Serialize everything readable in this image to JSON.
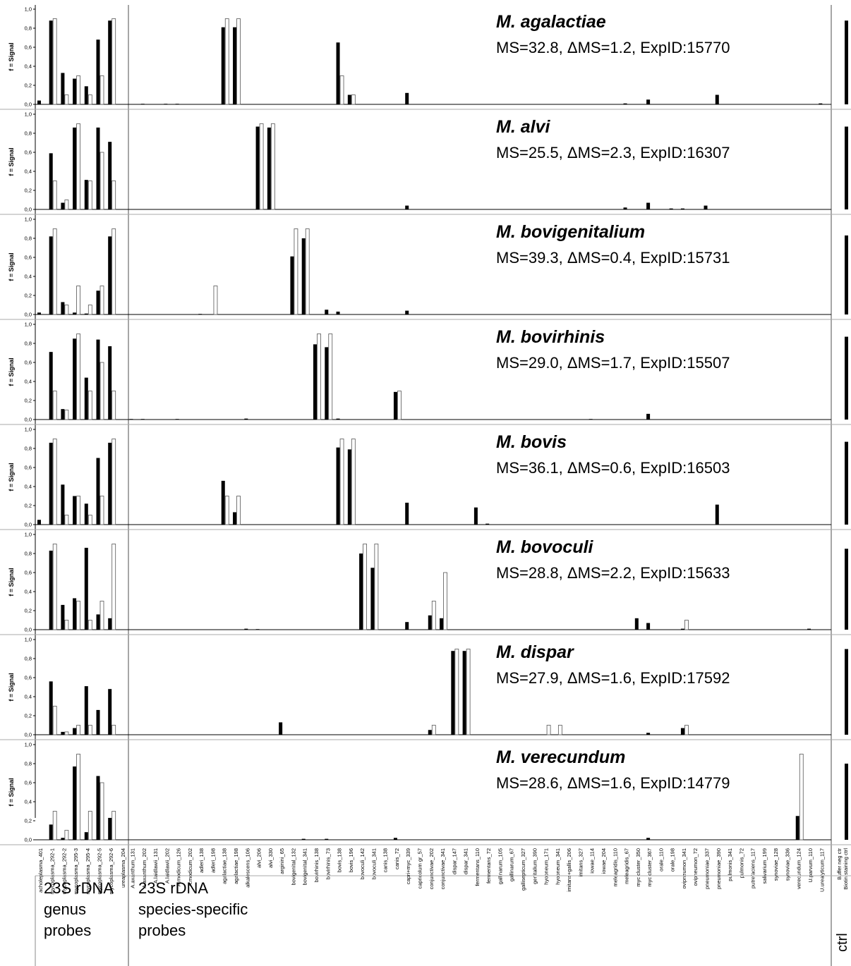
{
  "chart_data": {
    "type": "bar",
    "ylabel": "f = Signal",
    "ylim": [
      0,
      1.0
    ],
    "yticks": [
      "0,0",
      "0,2",
      "0,4",
      "0,6",
      "0,8",
      "1,0"
    ],
    "bar_colors": {
      "measured": "#000000",
      "expected": "#ffffff"
    },
    "groups": {
      "genus": [
        "23S rDNA",
        "genus",
        "probes"
      ],
      "species": [
        "23S rDNA",
        "species-specific",
        "probes"
      ],
      "ctrl": "ctrl"
    },
    "probes": [
      "acholeplasma_401",
      "mycoplasma_292-1",
      "mycoplasma_292-2",
      "mycoplasma_295-3",
      "mycoplasma_295-4",
      "mycoplasma_292-5",
      "mycoplasma_292-6",
      "ureaplasma_204",
      "A.axanthum_131",
      "A.axanthum_202",
      "A.laidlawii_131",
      "A.laidlawii_202",
      "A.modicum_126",
      "A.modicum_202",
      "adleri_138",
      "adleri_198",
      "agalactiae_138",
      "agalactiae_198",
      "alkalescens_106",
      "alvi_206",
      "alvi_330",
      "arginini_65",
      "bovigenital_132",
      "bovigenital_341",
      "bovirhinis_138",
      "bovirhinis_73",
      "bovis_138",
      "bovis_196",
      "bovoculi_142",
      "bovoculi_341",
      "canis_138",
      "canis_72",
      "capri+myc_339",
      "capricolum gr_57",
      "conjunctivae_202",
      "conjunctivae_341",
      "dispar_147",
      "dispar_341",
      "fermentans_110",
      "fermentans_72",
      "gallinarum_105",
      "gallinarum_67",
      "gallisepticum_327",
      "genitalium_390",
      "hyopneum_171",
      "hyopneum_341",
      "imitans+gallis_206",
      "imitans_327",
      "iowae_114",
      "iowae_204",
      "meleagridis_110",
      "meleagridis_67",
      "myc cluster_350",
      "myc cluster_367",
      "orale_110",
      "orale_198",
      "ovipneumon_341",
      "ovipneumon_72",
      "pneumoniae_337",
      "pneumoniae_390",
      "pulmonis_341",
      "pulmonis_72",
      "putrefaciens_117",
      "salivarium_199",
      "synoviae_128",
      "synoviae_336",
      "verecundum_124",
      "U.parvum_110",
      "U.urealyticum_117",
      "Buffer neg ctr",
      "Biotin staining ctrl"
    ],
    "panels": [
      {
        "species": "M. agalactiae",
        "info": "MS=32.8,   ΔMS=1.2, ExpID:15770",
        "measured": [
          0.04,
          0.88,
          0.33,
          0.27,
          0.19,
          0.68,
          0.88,
          0,
          0,
          0.003,
          0,
          0.003,
          0.003,
          0,
          0,
          0,
          0.81,
          0.81,
          0,
          0,
          0,
          0,
          0,
          0,
          0,
          0,
          0.65,
          0.1,
          0,
          0,
          0,
          0,
          0.12,
          0,
          0,
          0,
          0,
          0,
          0,
          0,
          0,
          0,
          0,
          0,
          0,
          0,
          0,
          0,
          0,
          0,
          0,
          0.01,
          0,
          0.05,
          0,
          0,
          0,
          0,
          0,
          0.1,
          0,
          0,
          0,
          0,
          0,
          0,
          0,
          0,
          0.01,
          0,
          0.88
        ],
        "expected": [
          0,
          0.9,
          0.1,
          0.3,
          0.1,
          0.3,
          0.9,
          0,
          0,
          0,
          0,
          0,
          0,
          0,
          0,
          0,
          0.9,
          0.9,
          0,
          0,
          0,
          0,
          0,
          0,
          0,
          0,
          0.3,
          0.1,
          0,
          0,
          0,
          0,
          0,
          0,
          0,
          0,
          0,
          0,
          0,
          0,
          0,
          0,
          0,
          0,
          0,
          0,
          0,
          0,
          0,
          0,
          0,
          0,
          0,
          0,
          0,
          0,
          0,
          0,
          0,
          0,
          0,
          0,
          0,
          0,
          0,
          0,
          0,
          0,
          0,
          0,
          0
        ]
      },
      {
        "species": "M. alvi",
        "info": "MS=25.5, ΔMS=2.3, ExpID:16307",
        "measured": [
          0,
          0.59,
          0.07,
          0.86,
          0.31,
          0.86,
          0.71,
          0,
          0,
          0,
          0,
          0,
          0,
          0,
          0,
          0,
          0,
          0,
          0,
          0.87,
          0.86,
          0,
          0,
          0,
          0,
          0,
          0,
          0,
          0,
          0,
          0,
          0,
          0.04,
          0,
          0,
          0,
          0,
          0,
          0,
          0,
          0,
          0,
          0,
          0,
          0,
          0,
          0,
          0,
          0,
          0,
          0,
          0.02,
          0,
          0.07,
          0,
          0.01,
          0.01,
          0,
          0.04,
          0,
          0,
          0,
          0,
          0,
          0,
          0,
          0,
          0,
          0,
          0,
          0.87
        ],
        "expected": [
          0,
          0.3,
          0.1,
          0.9,
          0.3,
          0.6,
          0.3,
          0,
          0,
          0,
          0,
          0,
          0,
          0,
          0,
          0,
          0,
          0,
          0,
          0.9,
          0.9,
          0,
          0,
          0,
          0,
          0,
          0,
          0,
          0,
          0,
          0,
          0,
          0,
          0,
          0,
          0,
          0,
          0,
          0,
          0,
          0,
          0,
          0,
          0,
          0,
          0,
          0,
          0,
          0,
          0,
          0,
          0,
          0,
          0,
          0,
          0,
          0,
          0,
          0,
          0,
          0,
          0,
          0,
          0,
          0,
          0,
          0,
          0,
          0,
          0,
          0
        ]
      },
      {
        "species": "M. bovigenitalium",
        "info": "MS=39.3, ΔMS=0.4, ExpID:15731",
        "measured": [
          0.02,
          0.82,
          0.13,
          0.02,
          0.01,
          0.25,
          0.82,
          0,
          0,
          0,
          0,
          0,
          0,
          0,
          0.005,
          0,
          0,
          0,
          0,
          0,
          0,
          0,
          0.61,
          0.8,
          0,
          0.05,
          0.03,
          0,
          0,
          0,
          0,
          0,
          0.04,
          0,
          0,
          0,
          0,
          0,
          0,
          0,
          0,
          0,
          0,
          0,
          0,
          0,
          0,
          0,
          0,
          0,
          0,
          0,
          0,
          0,
          0,
          0,
          0,
          0,
          0,
          0,
          0,
          0,
          0,
          0,
          0,
          0,
          0,
          0,
          0,
          0,
          0.83
        ],
        "expected": [
          0,
          0.9,
          0.1,
          0.3,
          0.1,
          0.3,
          0.9,
          0,
          0,
          0,
          0,
          0,
          0,
          0,
          0,
          0.3,
          0,
          0,
          0,
          0,
          0,
          0,
          0.9,
          0.9,
          0,
          0,
          0,
          0,
          0,
          0,
          0,
          0,
          0,
          0,
          0,
          0,
          0,
          0,
          0,
          0,
          0,
          0,
          0,
          0,
          0,
          0,
          0,
          0,
          0,
          0,
          0,
          0,
          0,
          0,
          0,
          0,
          0,
          0,
          0,
          0,
          0,
          0,
          0,
          0,
          0,
          0,
          0,
          0,
          0,
          0,
          0
        ]
      },
      {
        "species": "M. bovirhinis",
        "info": "MS=29.0, ΔMS=1.7, ExpID:15507",
        "measured": [
          0,
          0.71,
          0.11,
          0.85,
          0.44,
          0.84,
          0.77,
          0,
          0.005,
          0.005,
          0,
          0,
          0.005,
          0,
          0,
          0,
          0,
          0,
          0.01,
          0,
          0,
          0,
          0,
          0,
          0.79,
          0.76,
          0.01,
          0,
          0,
          0,
          0,
          0.29,
          0,
          0,
          0,
          0,
          0,
          0,
          0,
          0,
          0,
          0,
          0,
          0,
          0,
          0,
          0,
          0,
          0.005,
          0,
          0,
          0,
          0,
          0.06,
          0,
          0,
          0,
          0,
          0,
          0,
          0,
          0,
          0,
          0,
          0,
          0,
          0,
          0,
          0,
          0,
          0.87
        ],
        "expected": [
          0,
          0.3,
          0.1,
          0.9,
          0.3,
          0.6,
          0.3,
          0,
          0,
          0,
          0,
          0,
          0,
          0,
          0,
          0,
          0,
          0,
          0,
          0,
          0,
          0,
          0,
          0,
          0.9,
          0.9,
          0,
          0,
          0,
          0,
          0,
          0.3,
          0,
          0,
          0,
          0,
          0,
          0,
          0,
          0,
          0,
          0,
          0,
          0,
          0,
          0,
          0,
          0,
          0,
          0,
          0,
          0,
          0,
          0,
          0,
          0,
          0,
          0,
          0,
          0,
          0,
          0,
          0,
          0,
          0,
          0,
          0,
          0,
          0,
          0,
          0
        ]
      },
      {
        "species": "M. bovis",
        "info": "MS=36.1, ΔMS=0.6, ExpID:16503",
        "measured": [
          0.05,
          0.86,
          0.42,
          0.3,
          0.22,
          0.7,
          0.86,
          0,
          0,
          0,
          0,
          0,
          0,
          0,
          0,
          0,
          0.46,
          0.13,
          0,
          0,
          0,
          0,
          0,
          0,
          0,
          0,
          0.81,
          0.79,
          0,
          0,
          0,
          0,
          0.23,
          0,
          0,
          0,
          0,
          0,
          0.18,
          0.01,
          0,
          0,
          0,
          0,
          0,
          0,
          0,
          0,
          0,
          0,
          0,
          0,
          0,
          0,
          0,
          0,
          0,
          0,
          0,
          0.21,
          0,
          0,
          0,
          0,
          0,
          0,
          0,
          0,
          0,
          0,
          0.87
        ],
        "expected": [
          0,
          0.9,
          0.1,
          0.3,
          0.1,
          0.3,
          0.9,
          0,
          0,
          0,
          0,
          0,
          0,
          0,
          0,
          0,
          0.3,
          0.3,
          0,
          0,
          0,
          0,
          0,
          0,
          0,
          0,
          0.9,
          0.9,
          0,
          0,
          0,
          0,
          0,
          0,
          0,
          0,
          0,
          0,
          0,
          0,
          0,
          0,
          0,
          0,
          0,
          0,
          0,
          0,
          0,
          0,
          0,
          0,
          0,
          0,
          0,
          0,
          0,
          0,
          0,
          0,
          0,
          0,
          0,
          0,
          0,
          0,
          0,
          0,
          0,
          0,
          0
        ]
      },
      {
        "species": "M. bovoculi",
        "info": "MS=28.8, ΔMS=2.2, ExpID:15633",
        "measured": [
          0,
          0.83,
          0.26,
          0.33,
          0.86,
          0.16,
          0.12,
          0,
          0,
          0,
          0,
          0,
          0,
          0,
          0,
          0,
          0,
          0,
          0.01,
          0.005,
          0,
          0,
          0,
          0,
          0,
          0,
          0,
          0,
          0.8,
          0.65,
          0,
          0,
          0.08,
          0,
          0.15,
          0.12,
          0,
          0,
          0,
          0,
          0,
          0,
          0,
          0,
          0,
          0,
          0,
          0,
          0,
          0,
          0,
          0,
          0.12,
          0.07,
          0,
          0,
          0.01,
          0,
          0,
          0,
          0,
          0,
          0,
          0,
          0,
          0,
          0,
          0.01,
          0,
          0,
          0.85
        ],
        "expected": [
          0,
          0.9,
          0.1,
          0.3,
          0.1,
          0.3,
          0.9,
          0,
          0,
          0,
          0,
          0,
          0,
          0,
          0,
          0,
          0,
          0,
          0,
          0,
          0,
          0,
          0,
          0,
          0,
          0,
          0,
          0,
          0.9,
          0.9,
          0,
          0,
          0,
          0,
          0.3,
          0.6,
          0,
          0,
          0,
          0,
          0,
          0,
          0,
          0,
          0,
          0,
          0,
          0,
          0,
          0,
          0,
          0,
          0,
          0,
          0,
          0,
          0.1,
          0,
          0,
          0,
          0,
          0,
          0,
          0,
          0,
          0,
          0,
          0,
          0,
          0,
          0
        ]
      },
      {
        "species": "M. dispar",
        "info": "MS=27.9, ΔMS=1.6, ExpID:17592",
        "measured": [
          0,
          0.56,
          0.03,
          0.07,
          0.51,
          0.26,
          0.48,
          0,
          0,
          0,
          0,
          0,
          0,
          0,
          0,
          0,
          0,
          0,
          0,
          0,
          0,
          0.13,
          0,
          0,
          0,
          0,
          0,
          0,
          0,
          0,
          0,
          0,
          0,
          0,
          0.05,
          0,
          0.88,
          0.88,
          0,
          0,
          0,
          0,
          0,
          0,
          0,
          0,
          0,
          0,
          0,
          0,
          0,
          0,
          0,
          0.02,
          0,
          0,
          0.07,
          0,
          0,
          0,
          0,
          0,
          0,
          0,
          0,
          0,
          0,
          0,
          0,
          0,
          0.9
        ],
        "expected": [
          0,
          0.3,
          0.03,
          0.1,
          0.1,
          0,
          0.1,
          0,
          0,
          0,
          0,
          0,
          0,
          0,
          0,
          0,
          0,
          0,
          0,
          0,
          0,
          0,
          0,
          0,
          0,
          0,
          0,
          0,
          0,
          0,
          0,
          0,
          0,
          0,
          0.1,
          0,
          0.9,
          0.9,
          0,
          0,
          0,
          0,
          0,
          0,
          0.1,
          0.1,
          0,
          0,
          0,
          0,
          0,
          0,
          0,
          0,
          0,
          0,
          0.1,
          0,
          0,
          0,
          0,
          0,
          0,
          0,
          0,
          0,
          0,
          0,
          0,
          0,
          0
        ]
      },
      {
        "species": "M. verecundum",
        "info": "MS=28.6, ΔMS=1.6, ExpID:14779",
        "measured": [
          0,
          0.16,
          0.02,
          0.77,
          0.08,
          0.67,
          0.23,
          0,
          0,
          0,
          0,
          0,
          0,
          0,
          0,
          0,
          0,
          0,
          0,
          0,
          0,
          0,
          0,
          0.01,
          0,
          0.01,
          0,
          0,
          0,
          0,
          0,
          0.02,
          0,
          0,
          0,
          0,
          0,
          0,
          0,
          0,
          0,
          0,
          0,
          0,
          0,
          0,
          0,
          0,
          0,
          0,
          0,
          0,
          0,
          0.02,
          0,
          0,
          0,
          0,
          0,
          0,
          0,
          0,
          0,
          0,
          0,
          0,
          0.25,
          0,
          0,
          0,
          0.8
        ],
        "expected": [
          0,
          0.3,
          0.1,
          0.9,
          0.3,
          0.6,
          0.3,
          0,
          0,
          0,
          0,
          0,
          0,
          0,
          0,
          0,
          0,
          0,
          0,
          0,
          0,
          0,
          0,
          0,
          0,
          0,
          0,
          0,
          0,
          0,
          0,
          0,
          0,
          0,
          0,
          0,
          0,
          0,
          0,
          0,
          0,
          0,
          0,
          0,
          0,
          0,
          0,
          0,
          0,
          0,
          0,
          0,
          0,
          0,
          0,
          0,
          0,
          0,
          0,
          0,
          0,
          0,
          0,
          0,
          0,
          0,
          0.9,
          0,
          0,
          0,
          0
        ]
      }
    ]
  }
}
